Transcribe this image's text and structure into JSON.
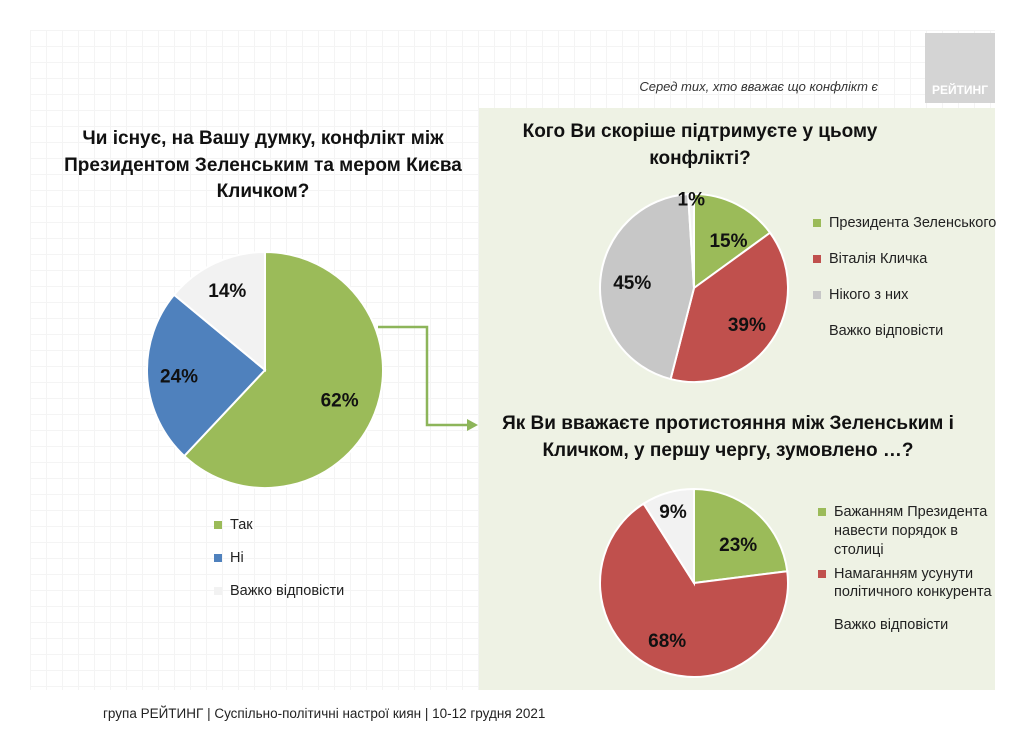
{
  "logo_text": "РЕЙТИНГ",
  "subnote": "Серед тих, хто вважає що конфлікт є",
  "footer": "група РЕЙТИНГ | Суспільно-політичні настрої киян | 10-12 грудня 2021",
  "colors": {
    "green": "#9bbb59",
    "red": "#c0504d",
    "blue": "#4f81bd",
    "gray": "#c7c7c7",
    "light": "#f2f2f2",
    "arrow": "#8db55a",
    "panel": "#eef2e4"
  },
  "chart_data": [
    {
      "type": "pie",
      "title": "Чи існує, на Вашу думку, конфлікт між Президентом Зеленським та мером Києва Кличком?",
      "categories": [
        "Так",
        "Ні",
        "Важко відповісти"
      ],
      "values": [
        62,
        24,
        14
      ],
      "labels": [
        "62%",
        "24%",
        "14%"
      ],
      "colors": [
        "#9bbb59",
        "#4f81bd",
        "#f2f2f2"
      ],
      "legend": "bottom"
    },
    {
      "type": "pie",
      "title": "Кого Ви скоріше підтримуєте у цьому конфлікті?",
      "categories": [
        "Президента Зеленського",
        "Віталія Кличка",
        "Нікого з них",
        "Важко відповісти"
      ],
      "values": [
        15,
        39,
        45,
        1
      ],
      "labels": [
        "15%",
        "39%",
        "45%",
        "1%"
      ],
      "colors": [
        "#9bbb59",
        "#c0504d",
        "#c7c7c7",
        "#f2f2f2"
      ],
      "legend": "right"
    },
    {
      "type": "pie",
      "title": "Як Ви вважаєте протистояння між Зеленським і Кличком, у першу чергу, зумовлено …?",
      "categories": [
        "Бажанням Президента навести порядок в столиці",
        "Намаганням усунути політичного конкурента",
        "Важко відповісти"
      ],
      "values": [
        23,
        68,
        9
      ],
      "labels": [
        "23%",
        "68%",
        "9%"
      ],
      "colors": [
        "#9bbb59",
        "#c0504d",
        "#f2f2f2"
      ],
      "legend": "right"
    }
  ]
}
